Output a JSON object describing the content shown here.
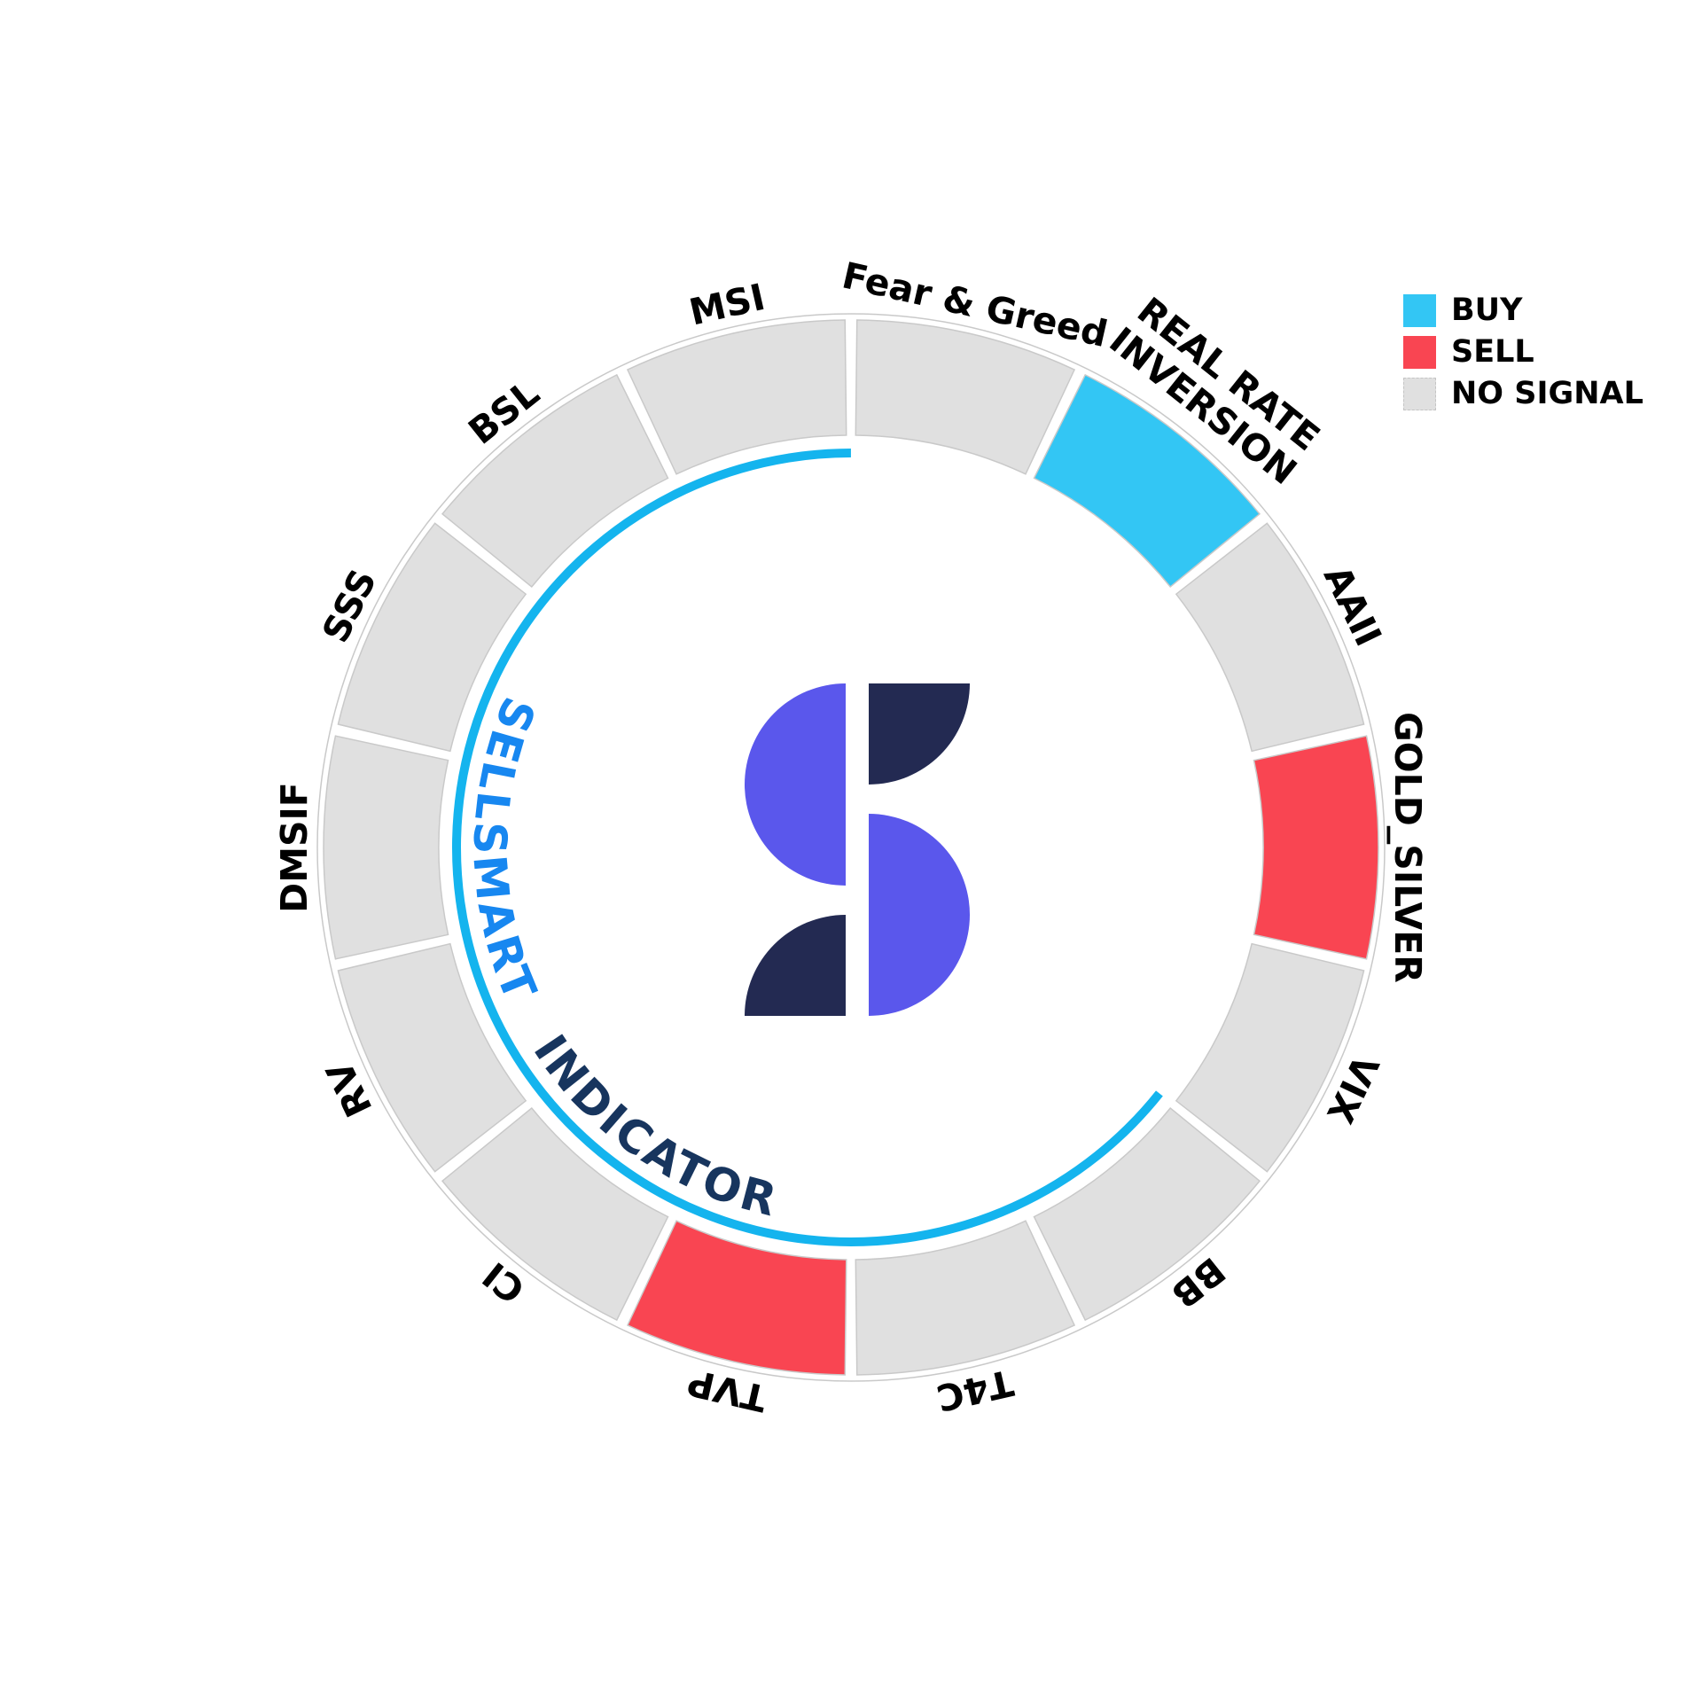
{
  "chart_data": {
    "type": "pie",
    "variant": "indicator-status-ring",
    "title": "SELLSMART INDICATOR",
    "categories": [
      "Fear & Greed",
      "REAL RATE\nINVERSION",
      "AAII",
      "GOLD_SILVER",
      "VIX",
      "BB",
      "T4C",
      "TVP",
      "CI",
      "RV",
      "DMSIF",
      "SSS",
      "BSL",
      "MSI"
    ],
    "values": [
      1,
      1,
      1,
      1,
      1,
      1,
      1,
      1,
      1,
      1,
      1,
      1,
      1,
      1
    ],
    "signals": [
      "NO SIGNAL",
      "BUY",
      "NO SIGNAL",
      "SELL",
      "NO SIGNAL",
      "NO SIGNAL",
      "NO SIGNAL",
      "SELL",
      "NO SIGNAL",
      "NO SIGNAL",
      "NO SIGNAL",
      "NO SIGNAL",
      "NO SIGNAL",
      "NO SIGNAL"
    ],
    "start_angle_deg": 0,
    "direction": "clockwise",
    "segment_gap_deg": 1.3,
    "signal_colors": {
      "BUY": "#33C6F4",
      "SELL": "#F94552",
      "NO SIGNAL": "#E0E0E0"
    },
    "progress_arc": {
      "start_deg": 128.57,
      "end_deg": 360,
      "color": "#14B4EE"
    },
    "grid": "off",
    "legend_position": "upper-right"
  },
  "legend": {
    "items": [
      {
        "label": "BUY",
        "color": "#33C6F4"
      },
      {
        "label": "SELL",
        "color": "#F94552"
      },
      {
        "label": "NO SIGNAL",
        "color": "#E0E0E0"
      }
    ]
  },
  "center_text": {
    "word1": "SELLSMART",
    "word2": "INDICATOR",
    "word1_color": "#1787F0",
    "word2_color": "#17355E"
  },
  "logo": {
    "purple": "#5A57EC",
    "navy": "#232A52"
  }
}
